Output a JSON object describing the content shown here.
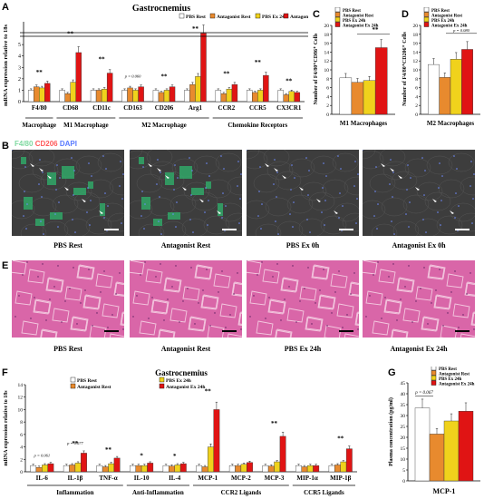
{
  "letters": {
    "A": "A",
    "B": "B",
    "C": "C",
    "D": "D",
    "E": "E",
    "F": "F",
    "G": "G"
  },
  "colors": {
    "pbs_rest": "#ffffff",
    "antagonist_rest": "#e88a2e",
    "pbs_ex": "#f0d21c",
    "antagonist_ex": "#e01414",
    "tissue": "#d966a8",
    "micro_bg": "#3c3c3c"
  },
  "panelA": {
    "title": "Gastrocnemius",
    "ylabel": "mRNA expression relative to 18s",
    "legend": [
      "PBS Rest",
      "Antagonist Rest",
      "PBS Ex 24h",
      "Antagonist Ex 24h"
    ],
    "groups": [
      "Macrophage",
      "M1 Macrophage",
      "M2 Macrophage",
      "Chemokine Receptors"
    ],
    "pvalue": "p = 0.060"
  },
  "panelB": {
    "stains": {
      "f480": "F4/80",
      "cd206": "CD206",
      "dapi": "DAPI"
    },
    "captions": [
      "PBS Rest",
      "Antagonist Rest",
      "PBS Ex 0h",
      "Antagonist Ex 0h"
    ]
  },
  "panelC": {
    "ylabel": "Number of F4/80⁺CD86⁺ Cells",
    "xlabel": "M1 Macrophages",
    "legend": [
      "PBS Rest",
      "Antagonist Rest",
      "PBS Ex 24h",
      "Antagonist Ex 24h"
    ]
  },
  "panelD": {
    "ylabel": "Number of F4/80⁺CD206⁺ Cells",
    "xlabel": "M2 Macrophages",
    "legend": [
      "PBS Rest",
      "Antagonist Rest",
      "PBS Ex 24h",
      "Antagonist Ex 24h"
    ],
    "pvalue": "p = 0.080"
  },
  "panelE": {
    "captions": [
      "PBS Rest",
      "Antagonist Rest",
      "PBS Ex 24h",
      "Antagonist Ex 24h"
    ]
  },
  "panelF": {
    "title": "Gastrocnemius",
    "ylabel": "mRNA expression relative to 18s",
    "legend": [
      "PBS Rest",
      "Antagonist Rest",
      "PBS Ex 24h",
      "Antagonist Ex 24h"
    ],
    "groups": [
      "Inflammation",
      "Anti-Inflammation",
      "CCR2 Ligands",
      "CCR5 Ligands"
    ],
    "pvalues": [
      "p = 0.061",
      "p = 0.077"
    ]
  },
  "panelG": {
    "ylabel": "Plasma concentration (pg/ml)",
    "xlabel": "MCP-1",
    "legend": [
      "PBS Rest",
      "Antagonist Rest",
      "PBS Ex 24h",
      "Antagonist Ex 24h"
    ],
    "pvalue": "p = 0.067"
  },
  "chart_data": [
    {
      "id": "A",
      "type": "bar",
      "categories": [
        "F4/80",
        "CD68",
        "CD11c",
        "CD163",
        "CD206",
        "Arg1",
        "CCR2",
        "CCR5",
        "CX3CR1"
      ],
      "series": [
        {
          "name": "PBS Rest",
          "values": [
            1.0,
            1.0,
            1.0,
            1.0,
            1.0,
            1.0,
            1.0,
            1.0,
            1.0
          ]
        },
        {
          "name": "Antagonist Rest",
          "values": [
            1.3,
            0.7,
            1.0,
            1.2,
            0.8,
            1.5,
            0.7,
            0.8,
            0.6
          ]
        },
        {
          "name": "PBS Ex 24h",
          "values": [
            1.2,
            1.7,
            1.1,
            1.0,
            1.0,
            2.2,
            1.1,
            1.0,
            0.9
          ]
        },
        {
          "name": "Antagonist Ex 24h",
          "values": [
            1.6,
            4.3,
            2.5,
            1.3,
            1.3,
            6.0,
            1.5,
            2.3,
            0.8
          ]
        }
      ],
      "ylim": [
        0,
        7
      ],
      "yticks": [
        0,
        1,
        2,
        3,
        4,
        5
      ]
    },
    {
      "id": "C",
      "type": "bar",
      "categories": [
        "M1 Macrophages"
      ],
      "series": [
        {
          "name": "PBS Rest",
          "values": [
            8.2
          ]
        },
        {
          "name": "Antagonist Rest",
          "values": [
            7.2
          ]
        },
        {
          "name": "PBS Ex 24h",
          "values": [
            7.6
          ]
        },
        {
          "name": "Antagonist Ex 24h",
          "values": [
            15.0
          ]
        }
      ],
      "ylim": [
        0,
        20
      ],
      "yticks": [
        0,
        2,
        4,
        6,
        8,
        10,
        12,
        14,
        16,
        18,
        20
      ]
    },
    {
      "id": "D",
      "type": "bar",
      "categories": [
        "M2 Macrophages"
      ],
      "series": [
        {
          "name": "PBS Rest",
          "values": [
            11.2
          ]
        },
        {
          "name": "Antagonist Rest",
          "values": [
            8.3
          ]
        },
        {
          "name": "PBS Ex 24h",
          "values": [
            12.4
          ]
        },
        {
          "name": "Antagonist Ex 24h",
          "values": [
            14.6
          ]
        }
      ],
      "ylim": [
        0,
        20
      ],
      "yticks": [
        0,
        2,
        4,
        6,
        8,
        10,
        12,
        14,
        16,
        18,
        20
      ]
    },
    {
      "id": "F",
      "type": "bar",
      "categories": [
        "IL-6",
        "IL-1β",
        "TNF-α",
        "IL-10",
        "IL-4",
        "MCP-1",
        "MCP-2",
        "MCP-3",
        "MIP-1α",
        "MIP-1β"
      ],
      "series": [
        {
          "name": "PBS Rest",
          "values": [
            1.0,
            1.0,
            1.0,
            1.0,
            1.0,
            1.0,
            1.0,
            1.0,
            1.0,
            1.0
          ]
        },
        {
          "name": "Antagonist Rest",
          "values": [
            0.7,
            1.1,
            0.8,
            1.0,
            0.9,
            0.8,
            1.0,
            0.9,
            0.8,
            1.1
          ]
        },
        {
          "name": "PBS Ex 24h",
          "values": [
            1.1,
            1.4,
            1.3,
            1.0,
            1.1,
            4.0,
            1.2,
            1.6,
            1.0,
            1.6
          ]
        },
        {
          "name": "Antagonist Ex 24h",
          "values": [
            1.3,
            3.0,
            2.2,
            1.4,
            1.3,
            10.0,
            1.5,
            5.7,
            1.0,
            3.7
          ]
        }
      ],
      "ylim": [
        0,
        14
      ],
      "yticks": [
        0,
        2,
        4,
        6,
        8,
        10,
        12,
        14
      ]
    },
    {
      "id": "G",
      "type": "bar",
      "categories": [
        "MCP-1"
      ],
      "series": [
        {
          "name": "PBS Rest",
          "values": [
            33.5
          ]
        },
        {
          "name": "Antagonist Rest",
          "values": [
            21.5
          ]
        },
        {
          "name": "PBS Ex 24h",
          "values": [
            27.5
          ]
        },
        {
          "name": "Antagonist Ex 24h",
          "values": [
            32.0
          ]
        }
      ],
      "ylim": [
        0,
        45
      ],
      "yticks": [
        0,
        5,
        10,
        15,
        20,
        25,
        30,
        35,
        40,
        45
      ]
    }
  ]
}
